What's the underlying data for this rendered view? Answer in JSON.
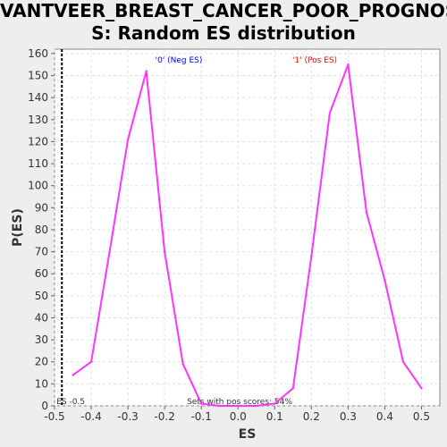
{
  "chart_data": {
    "type": "line",
    "title_line1": "VANTVEER_BREAST_CANCER_POOR_PROGNOSI",
    "title_line2": "S: Random ES distribution",
    "xlabel": "ES",
    "ylabel": "P(ES)",
    "xlim": [
      -0.5,
      0.55
    ],
    "ylim": [
      0,
      162
    ],
    "xticks": [
      "-0.5",
      "-0.4",
      "-0.3",
      "-0.2",
      "-0.1",
      "0.0",
      "0.1",
      "0.2",
      "0.3",
      "0.4",
      "0.5"
    ],
    "yticks": [
      "0",
      "10",
      "20",
      "30",
      "40",
      "50",
      "60",
      "70",
      "80",
      "90",
      "100",
      "110",
      "120",
      "130",
      "140",
      "150",
      "160"
    ],
    "series": [
      {
        "x": [
          -0.45,
          -0.4,
          -0.35,
          -0.3,
          -0.25,
          -0.2,
          -0.15,
          -0.1,
          -0.05,
          0.0,
          0.05,
          0.1,
          0.15,
          0.2,
          0.25,
          0.3,
          0.35,
          0.4,
          0.45,
          0.5
        ],
        "y": [
          14,
          20,
          70,
          121,
          152,
          70,
          19,
          1,
          0,
          0,
          0,
          1,
          8,
          68,
          133,
          155,
          88,
          57,
          20,
          8
        ]
      }
    ],
    "line_color": "#ff33ff",
    "marker_line_x": -0.48,
    "marker_line_label": "ES -0.5",
    "neg_label": "'0' (Neg ES)",
    "neg_color": "#0000ff",
    "pos_label": "'1' (Pos ES)",
    "pos_color": "#ff0000",
    "footer_text": "Sets with pos scores: 54%",
    "grid": true
  }
}
